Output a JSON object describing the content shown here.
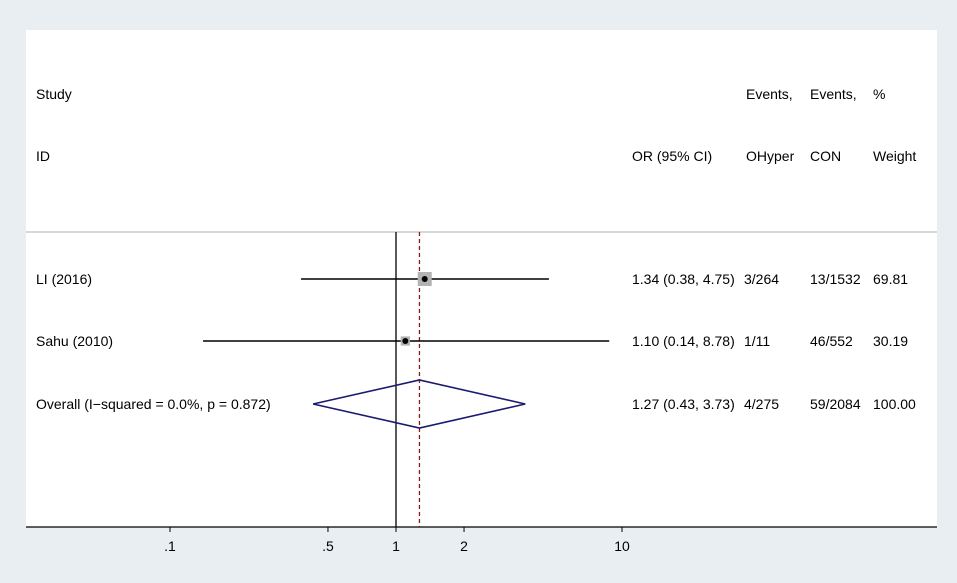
{
  "chart_data": {
    "type": "forest",
    "x_scale": "log",
    "x_ticks": [
      0.1,
      0.5,
      1,
      2,
      10
    ],
    "x_tick_labels": [
      ".1",
      ".5",
      "1",
      "2",
      "10"
    ],
    "null_line": 1,
    "overall_line": 1.27,
    "headers": {
      "study_1": "Study",
      "study_2": "ID",
      "or_2": "OR (95% CI)",
      "events1_1": "Events,",
      "events1_2": "OHyper",
      "events2_1": "Events,",
      "events2_2": "CON",
      "weight_1": "%",
      "weight_2": "Weight"
    },
    "studies": [
      {
        "label": "LI (2016)",
        "or": 1.34,
        "lo": 0.38,
        "hi": 4.75,
        "or_text": "1.34 (0.38, 4.75)",
        "events_ohyper": "3/264",
        "events_con": "13/1532",
        "weight": "69.81"
      },
      {
        "label": "Sahu (2010)",
        "or": 1.1,
        "lo": 0.14,
        "hi": 8.78,
        "or_text": "1.10 (0.14, 8.78)",
        "events_ohyper": "1/11",
        "events_con": "46/552",
        "weight": "30.19"
      }
    ],
    "overall": {
      "label": "Overall  (I−squared = 0.0%, p = 0.872)",
      "or": 1.27,
      "lo": 0.43,
      "hi": 3.73,
      "or_text": "1.27 (0.43, 3.73)",
      "events_ohyper": "4/275",
      "events_con": "59/2084",
      "weight": "100.00"
    },
    "colors": {
      "background": "#e8eef2",
      "plot": "#ffffff",
      "diamond": "#1a1a6e",
      "overall_line": "#8b1a1a",
      "marker_box": "#b3b3b3"
    }
  }
}
